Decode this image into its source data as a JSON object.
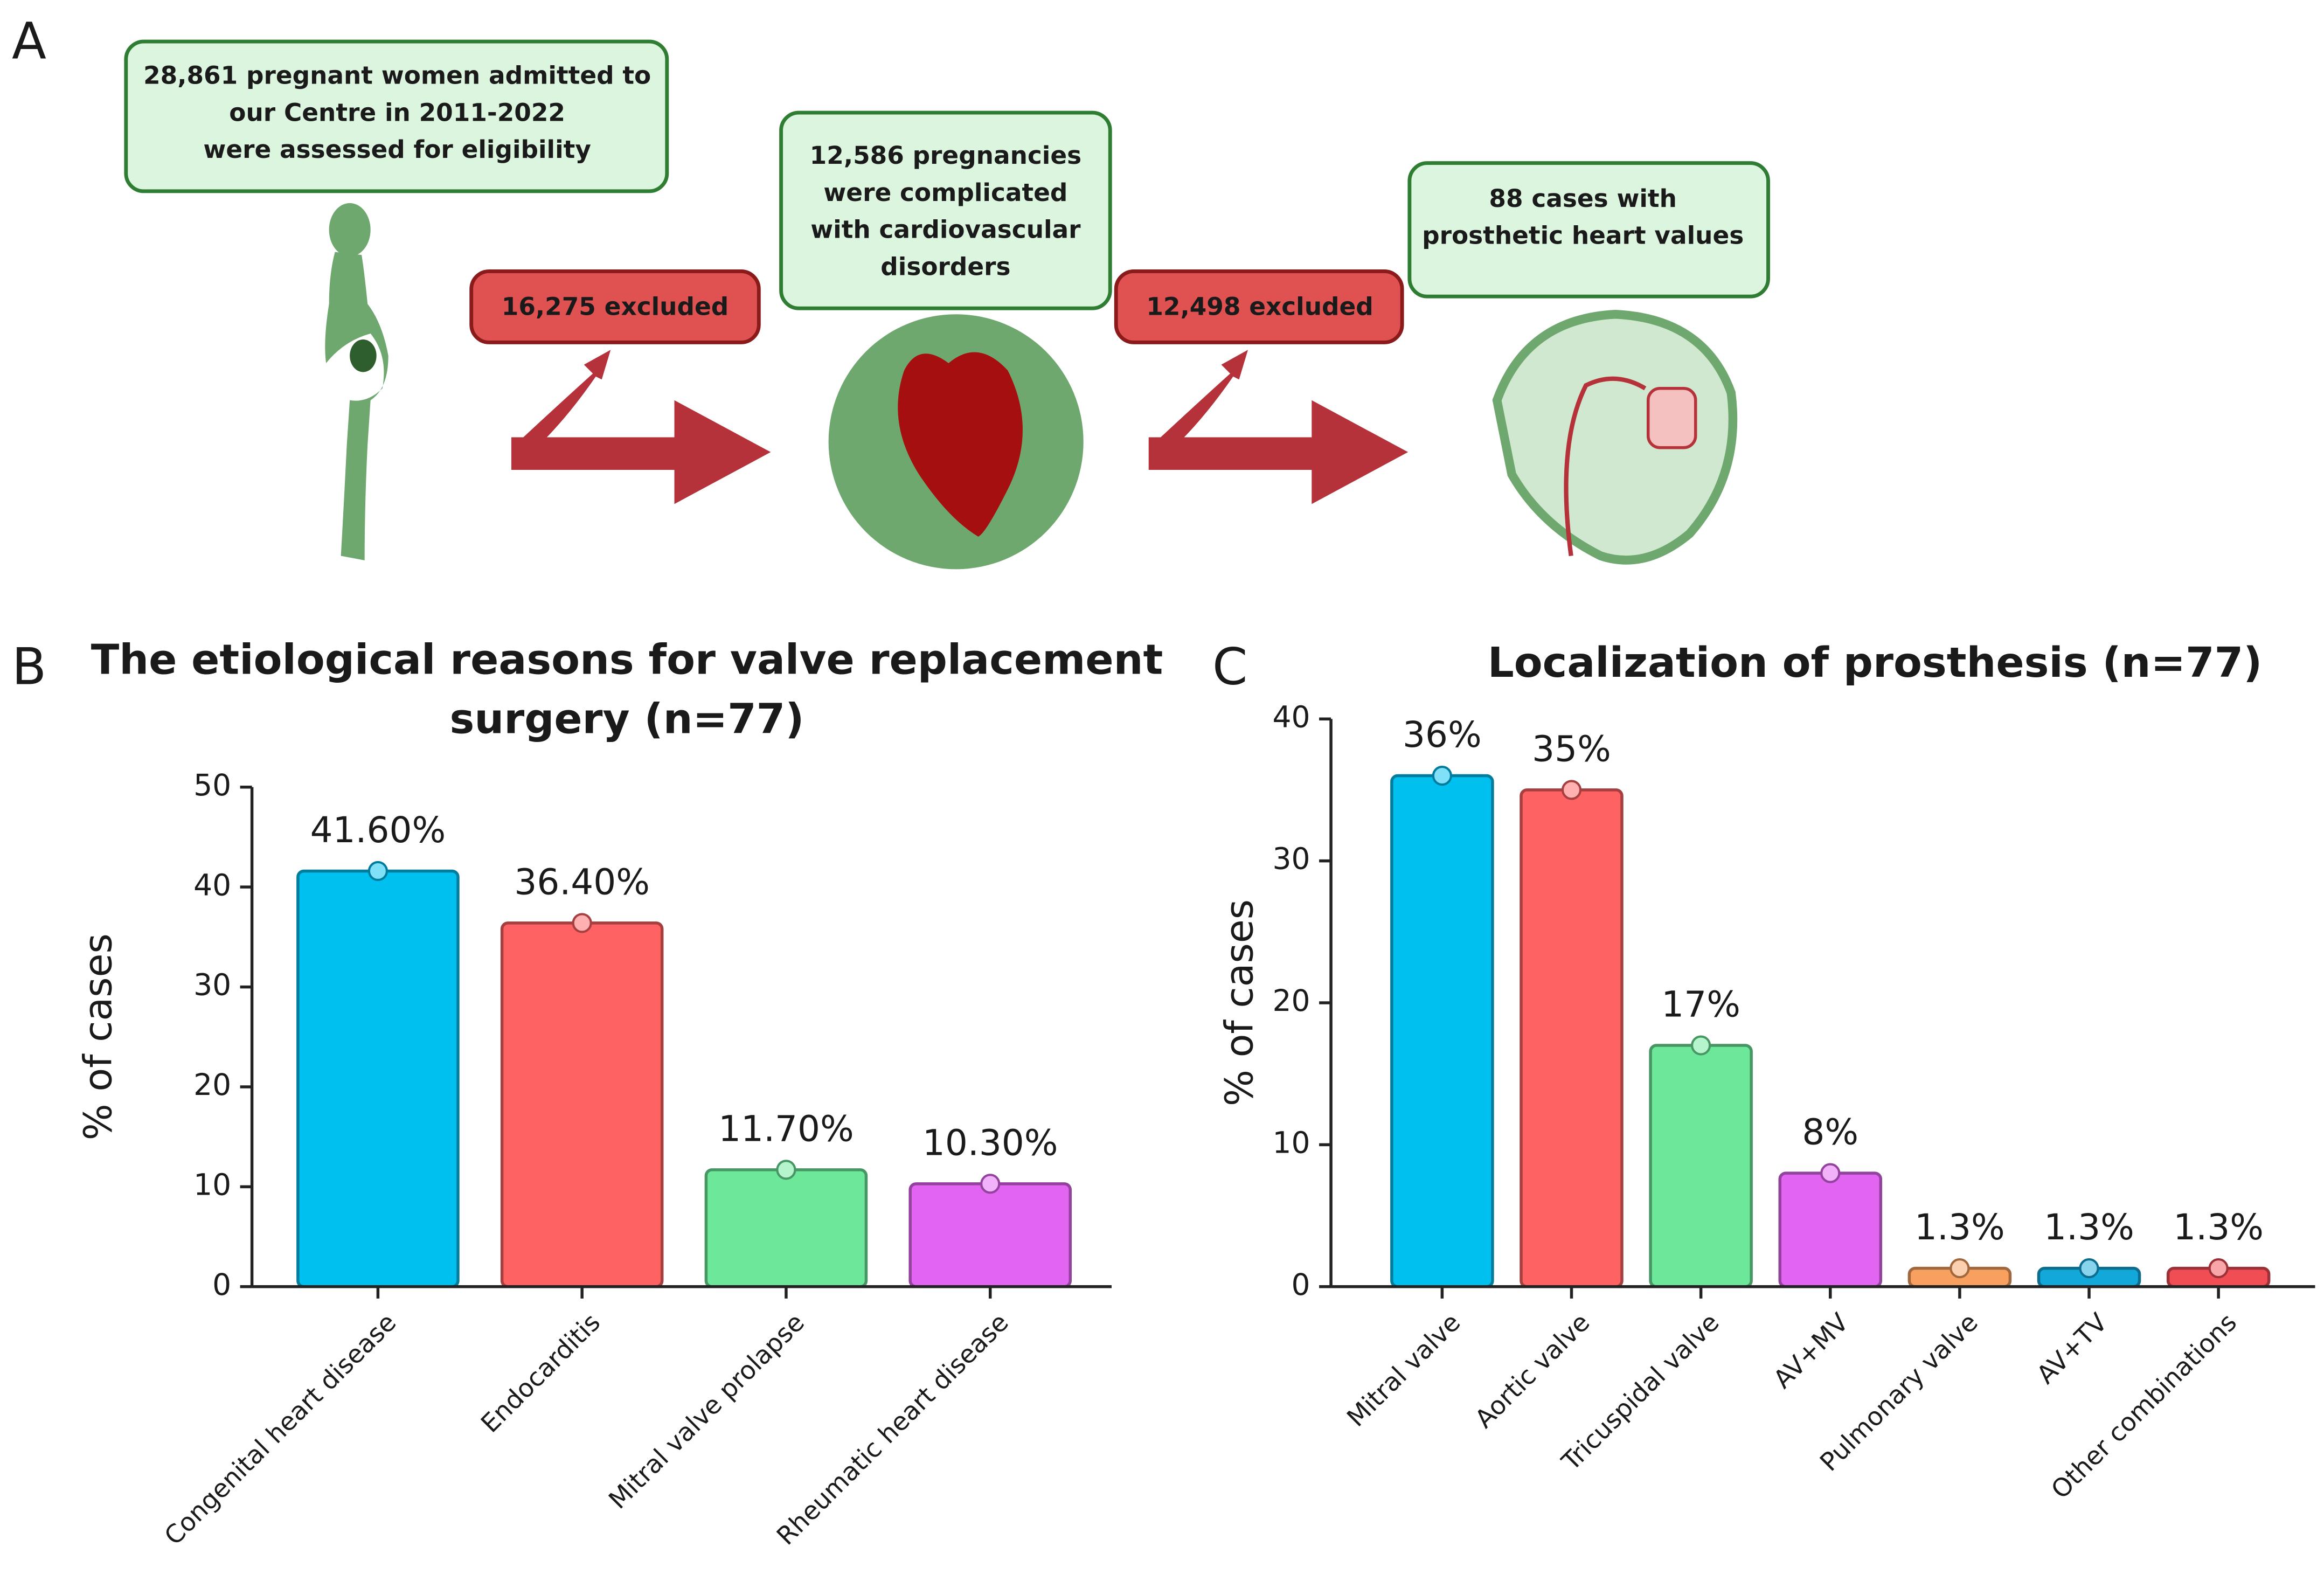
{
  "diagram": {
    "panel_labels": [
      "A",
      "B",
      "C"
    ],
    "boxes": [
      {
        "lines": [
          "28,861 pregnant women admitted to",
          "our Centre in 2011-2022",
          "were assessed for eligibility"
        ]
      },
      {
        "lines": [
          "16,275 excluded"
        ]
      },
      {
        "lines": [
          "12,586 pregnancies",
          "were complicated",
          "with cardiovascular",
          "disorders"
        ]
      },
      {
        "lines": [
          "12,498 excluded"
        ]
      },
      {
        "lines": [
          "88 cases with",
          "prosthetic heart values"
        ]
      }
    ]
  },
  "chart_data": [
    {
      "type": "bar",
      "title": [
        "The etiological reasons for valve replacement",
        "surgery (n=77)"
      ],
      "y_label": "% of cases",
      "categories": [
        "Congenital heart disease",
        "Endocarditis",
        "Mitral valve prolapse",
        "Rheumatic heart disease"
      ],
      "values": [
        41.6,
        36.4,
        11.7,
        10.3
      ],
      "value_labels": [
        "41.60%",
        "36.40%",
        "11.70%",
        "10.30%"
      ],
      "colors": [
        "#00c0f0",
        "#ff6262",
        "#6de89a",
        "#e265f2"
      ],
      "ylim": [
        0,
        50
      ],
      "yticks": [
        0,
        10,
        20,
        30,
        40,
        50
      ]
    },
    {
      "type": "bar",
      "title": [
        "Localization of prosthesis (n=77)"
      ],
      "y_label": "% of cases",
      "categories": [
        "Mitral valve",
        "Aortic valve",
        "Tricuspidal valve",
        "AV+MV",
        "Pulmonary valve",
        "AV+TV",
        "Other combinations"
      ],
      "values": [
        36,
        35,
        17,
        8,
        1.3,
        1.3,
        1.3
      ],
      "value_labels": [
        "36%",
        "35%",
        "17%",
        "8%",
        "1.3%",
        "1.3%",
        "1.3%"
      ],
      "colors": [
        "#00c0f0",
        "#ff6262",
        "#6de89a",
        "#e265f2",
        "#f7a060",
        "#12a8da",
        "#f04d55"
      ],
      "ylim": [
        0,
        40
      ],
      "yticks": [
        0,
        10,
        20,
        30,
        40
      ]
    }
  ]
}
